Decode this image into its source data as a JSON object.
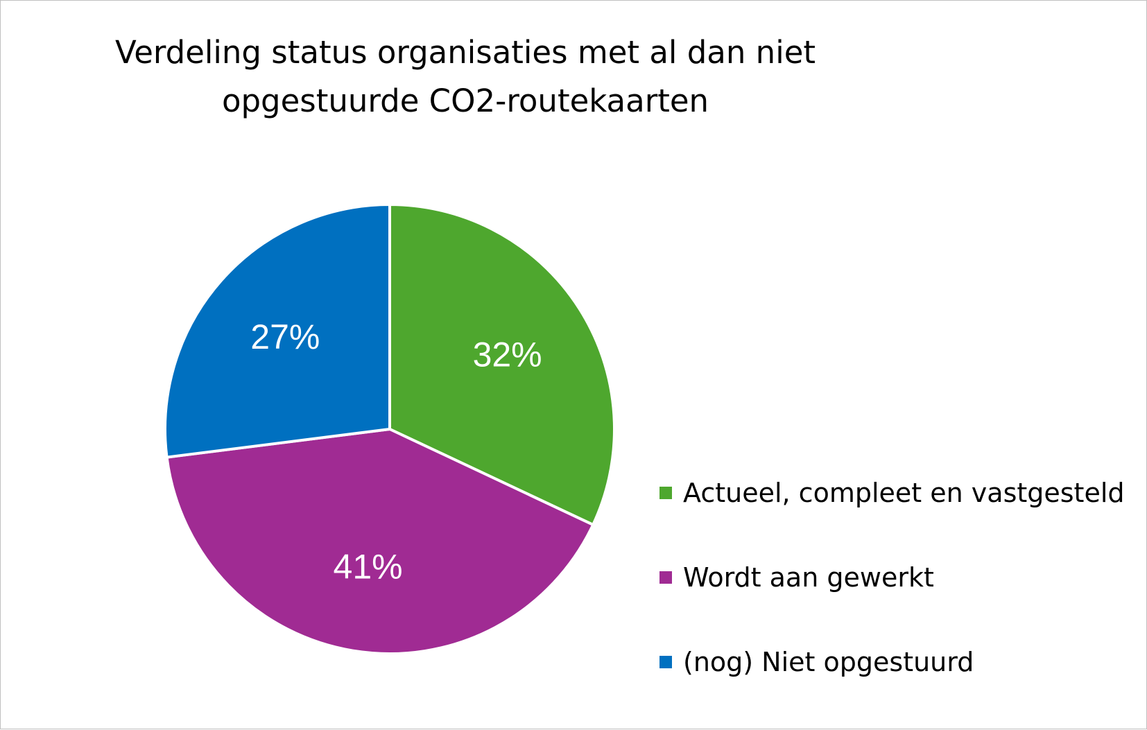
{
  "chart_data": {
    "type": "pie",
    "title": "Verdeling status organisaties met al dan niet opgestuurde CO2-routekaarten",
    "title_lines": [
      "Verdeling status organisaties met al dan niet",
      "opgestuurde CO2-routekaarten"
    ],
    "categories": [
      "Actueel, compleet en vastgesteld",
      "Wordt aan gewerkt",
      "(nog) Niet opgestuurd"
    ],
    "values": [
      32,
      41,
      27
    ],
    "data_labels": [
      "32%",
      "41%",
      "27%"
    ],
    "colors": [
      "#4EA72E",
      "#A02B93",
      "#0070C0"
    ],
    "label_color": "#FFFFFF",
    "legend_position": "right"
  }
}
